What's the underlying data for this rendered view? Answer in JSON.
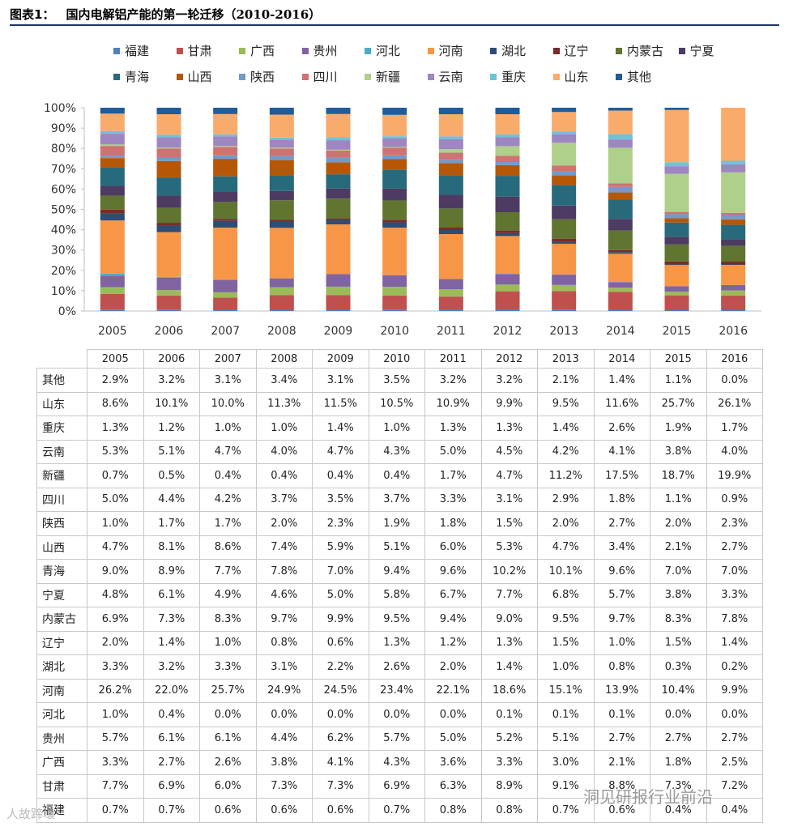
{
  "figure": {
    "label": "图表1：",
    "title": "国内电解铝产能的第一轮迁移（2010-2016）"
  },
  "colors": {
    "福建": "#4f81bd",
    "甘肃": "#c0504d",
    "广西": "#9bbb59",
    "贵州": "#8064a2",
    "河北": "#4bacc6",
    "河南": "#f79646",
    "湖北": "#2c4d75",
    "辽宁": "#772c2a",
    "内蒙古": "#5f7530",
    "宁夏": "#4d3b62",
    "青海": "#276a7c",
    "山西": "#b65708",
    "陕西": "#729aca",
    "四川": "#cd7371",
    "新疆": "#afd08a",
    "云南": "#9e86c1",
    "重庆": "#6fc3d7",
    "山东": "#f9ab6b",
    "其他": "#1f5c99"
  },
  "legend": {
    "row1": [
      "福建",
      "甘肃",
      "广西",
      "贵州",
      "河北",
      "河南",
      "湖北",
      "辽宁",
      "内蒙古",
      "宁夏"
    ],
    "row2": [
      "青海",
      "山西",
      "陕西",
      "四川",
      "新疆",
      "云南",
      "重庆",
      "山东",
      "其他"
    ]
  },
  "chart_data": {
    "type": "bar",
    "stacked": true,
    "categories": [
      "2005",
      "2006",
      "2007",
      "2008",
      "2009",
      "2010",
      "2011",
      "2012",
      "2013",
      "2014",
      "2015",
      "2016"
    ],
    "ylim": [
      0,
      100
    ],
    "yticks": [
      "0%",
      "10%",
      "20%",
      "30%",
      "40%",
      "50%",
      "60%",
      "70%",
      "80%",
      "90%",
      "100%"
    ],
    "series": [
      {
        "name": "福建",
        "values": [
          0.7,
          0.7,
          0.6,
          0.6,
          0.6,
          0.7,
          0.8,
          0.8,
          0.7,
          0.6,
          0.4,
          0.4
        ]
      },
      {
        "name": "甘肃",
        "values": [
          7.7,
          6.9,
          6.0,
          7.3,
          7.3,
          6.9,
          6.3,
          8.9,
          9.1,
          8.8,
          7.3,
          7.2
        ]
      },
      {
        "name": "广西",
        "values": [
          3.3,
          2.7,
          2.6,
          3.8,
          4.1,
          4.3,
          3.6,
          3.3,
          3.0,
          2.1,
          1.8,
          2.5
        ]
      },
      {
        "name": "贵州",
        "values": [
          5.7,
          6.1,
          6.1,
          4.4,
          6.2,
          5.7,
          5.0,
          5.2,
          5.1,
          2.7,
          2.7,
          2.7
        ]
      },
      {
        "name": "河北",
        "values": [
          1.0,
          0.4,
          0.0,
          0.0,
          0.0,
          0.0,
          0.0,
          0.1,
          0.1,
          0.1,
          0.0,
          0.0
        ]
      },
      {
        "name": "河南",
        "values": [
          26.2,
          22.0,
          25.7,
          24.9,
          24.5,
          23.4,
          22.1,
          18.6,
          15.1,
          13.9,
          10.4,
          9.9
        ]
      },
      {
        "name": "湖北",
        "values": [
          3.3,
          3.2,
          3.3,
          3.1,
          2.2,
          2.6,
          2.0,
          1.4,
          1.0,
          0.8,
          0.3,
          0.2
        ]
      },
      {
        "name": "辽宁",
        "values": [
          2.0,
          1.4,
          1.0,
          0.8,
          0.6,
          1.3,
          1.2,
          1.3,
          1.5,
          1.0,
          1.5,
          1.4
        ]
      },
      {
        "name": "内蒙古",
        "values": [
          6.9,
          7.3,
          8.3,
          9.7,
          9.9,
          9.5,
          9.4,
          9.0,
          9.5,
          9.7,
          8.3,
          7.8
        ]
      },
      {
        "name": "宁夏",
        "values": [
          4.8,
          6.1,
          4.9,
          4.6,
          5.0,
          5.8,
          6.7,
          7.7,
          6.8,
          5.7,
          3.8,
          3.3
        ]
      },
      {
        "name": "青海",
        "values": [
          9.0,
          8.9,
          7.7,
          7.8,
          7.0,
          9.4,
          9.6,
          10.2,
          10.1,
          9.6,
          7.0,
          7.0
        ]
      },
      {
        "name": "山西",
        "values": [
          4.7,
          8.1,
          8.6,
          7.4,
          5.9,
          5.1,
          6.0,
          5.3,
          4.7,
          3.4,
          2.1,
          2.7
        ]
      },
      {
        "name": "陕西",
        "values": [
          1.0,
          1.7,
          1.7,
          2.0,
          2.3,
          1.9,
          1.8,
          1.5,
          2.0,
          2.7,
          2.0,
          2.3
        ]
      },
      {
        "name": "四川",
        "values": [
          5.0,
          4.4,
          4.2,
          3.7,
          3.5,
          3.7,
          3.3,
          3.1,
          2.9,
          1.8,
          1.1,
          0.9
        ]
      },
      {
        "name": "新疆",
        "values": [
          0.7,
          0.5,
          0.4,
          0.4,
          0.4,
          0.4,
          1.7,
          4.7,
          11.2,
          17.5,
          18.7,
          19.9
        ]
      },
      {
        "name": "云南",
        "values": [
          5.3,
          5.1,
          4.7,
          4.0,
          4.7,
          4.3,
          5.0,
          4.5,
          4.2,
          4.1,
          3.8,
          4.0
        ]
      },
      {
        "name": "重庆",
        "values": [
          1.3,
          1.2,
          1.0,
          1.0,
          1.4,
          1.0,
          1.3,
          1.3,
          1.4,
          2.6,
          1.9,
          1.7
        ]
      },
      {
        "name": "山东",
        "values": [
          8.6,
          10.1,
          10.0,
          11.3,
          11.5,
          10.5,
          10.9,
          9.9,
          9.5,
          11.6,
          25.7,
          26.1
        ]
      },
      {
        "name": "其他",
        "values": [
          2.9,
          3.2,
          3.1,
          3.4,
          3.1,
          3.5,
          3.2,
          3.2,
          2.1,
          1.4,
          1.1,
          0.0
        ]
      }
    ]
  },
  "table": {
    "years": [
      "2005",
      "2006",
      "2007",
      "2008",
      "2009",
      "2010",
      "2011",
      "2012",
      "2013",
      "2014",
      "2015",
      "2016"
    ],
    "rows": [
      {
        "label": "其他",
        "cells": [
          "2.9%",
          "3.2%",
          "3.1%",
          "3.4%",
          "3.1%",
          "3.5%",
          "3.2%",
          "3.2%",
          "2.1%",
          "1.4%",
          "1.1%",
          "0.0%"
        ]
      },
      {
        "label": "山东",
        "cells": [
          "8.6%",
          "10.1%",
          "10.0%",
          "11.3%",
          "11.5%",
          "10.5%",
          "10.9%",
          "9.9%",
          "9.5%",
          "11.6%",
          "25.7%",
          "26.1%"
        ]
      },
      {
        "label": "重庆",
        "cells": [
          "1.3%",
          "1.2%",
          "1.0%",
          "1.0%",
          "1.4%",
          "1.0%",
          "1.3%",
          "1.3%",
          "1.4%",
          "2.6%",
          "1.9%",
          "1.7%"
        ]
      },
      {
        "label": "云南",
        "cells": [
          "5.3%",
          "5.1%",
          "4.7%",
          "4.0%",
          "4.7%",
          "4.3%",
          "5.0%",
          "4.5%",
          "4.2%",
          "4.1%",
          "3.8%",
          "4.0%"
        ]
      },
      {
        "label": "新疆",
        "cells": [
          "0.7%",
          "0.5%",
          "0.4%",
          "0.4%",
          "0.4%",
          "0.4%",
          "1.7%",
          "4.7%",
          "11.2%",
          "17.5%",
          "18.7%",
          "19.9%"
        ]
      },
      {
        "label": "四川",
        "cells": [
          "5.0%",
          "4.4%",
          "4.2%",
          "3.7%",
          "3.5%",
          "3.7%",
          "3.3%",
          "3.1%",
          "2.9%",
          "1.8%",
          "1.1%",
          "0.9%"
        ]
      },
      {
        "label": "陕西",
        "cells": [
          "1.0%",
          "1.7%",
          "1.7%",
          "2.0%",
          "2.3%",
          "1.9%",
          "1.8%",
          "1.5%",
          "2.0%",
          "2.7%",
          "2.0%",
          "2.3%"
        ]
      },
      {
        "label": "山西",
        "cells": [
          "4.7%",
          "8.1%",
          "8.6%",
          "7.4%",
          "5.9%",
          "5.1%",
          "6.0%",
          "5.3%",
          "4.7%",
          "3.4%",
          "2.1%",
          "2.7%"
        ]
      },
      {
        "label": "青海",
        "cells": [
          "9.0%",
          "8.9%",
          "7.7%",
          "7.8%",
          "7.0%",
          "9.4%",
          "9.6%",
          "10.2%",
          "10.1%",
          "9.6%",
          "7.0%",
          "7.0%"
        ]
      },
      {
        "label": "宁夏",
        "cells": [
          "4.8%",
          "6.1%",
          "4.9%",
          "4.6%",
          "5.0%",
          "5.8%",
          "6.7%",
          "7.7%",
          "6.8%",
          "5.7%",
          "3.8%",
          "3.3%"
        ]
      },
      {
        "label": "内蒙古",
        "cells": [
          "6.9%",
          "7.3%",
          "8.3%",
          "9.7%",
          "9.9%",
          "9.5%",
          "9.4%",
          "9.0%",
          "9.5%",
          "9.7%",
          "8.3%",
          "7.8%"
        ]
      },
      {
        "label": "辽宁",
        "cells": [
          "2.0%",
          "1.4%",
          "1.0%",
          "0.8%",
          "0.6%",
          "1.3%",
          "1.2%",
          "1.3%",
          "1.5%",
          "1.0%",
          "1.5%",
          "1.4%"
        ]
      },
      {
        "label": "湖北",
        "cells": [
          "3.3%",
          "3.2%",
          "3.3%",
          "3.1%",
          "2.2%",
          "2.6%",
          "2.0%",
          "1.4%",
          "1.0%",
          "0.8%",
          "0.3%",
          "0.2%"
        ]
      },
      {
        "label": "河南",
        "cells": [
          "26.2%",
          "22.0%",
          "25.7%",
          "24.9%",
          "24.5%",
          "23.4%",
          "22.1%",
          "18.6%",
          "15.1%",
          "13.9%",
          "10.4%",
          "9.9%"
        ]
      },
      {
        "label": "河北",
        "cells": [
          "1.0%",
          "0.4%",
          "0.0%",
          "0.0%",
          "0.0%",
          "0.0%",
          "0.0%",
          "0.1%",
          "0.1%",
          "0.1%",
          "0.0%",
          "0.0%"
        ]
      },
      {
        "label": "贵州",
        "cells": [
          "5.7%",
          "6.1%",
          "6.1%",
          "4.4%",
          "6.2%",
          "5.7%",
          "5.0%",
          "5.2%",
          "5.1%",
          "2.7%",
          "2.7%",
          "2.7%"
        ]
      },
      {
        "label": "广西",
        "cells": [
          "3.3%",
          "2.7%",
          "2.6%",
          "3.8%",
          "4.1%",
          "4.3%",
          "3.6%",
          "3.3%",
          "3.0%",
          "2.1%",
          "1.8%",
          "2.5%"
        ]
      },
      {
        "label": "甘肃",
        "cells": [
          "7.7%",
          "6.9%",
          "6.0%",
          "7.3%",
          "7.3%",
          "6.9%",
          "6.3%",
          "8.9%",
          "9.1%",
          "8.8%",
          "7.3%",
          "7.2%"
        ]
      },
      {
        "label": "福建",
        "cells": [
          "0.7%",
          "0.7%",
          "0.6%",
          "0.6%",
          "0.6%",
          "0.7%",
          "0.8%",
          "0.8%",
          "0.7%",
          "0.6%",
          "0.4%",
          "0.4%"
        ]
      }
    ]
  },
  "watermarks": {
    "left": "人故蹄壤",
    "right": "洞见研报行业前沿"
  }
}
